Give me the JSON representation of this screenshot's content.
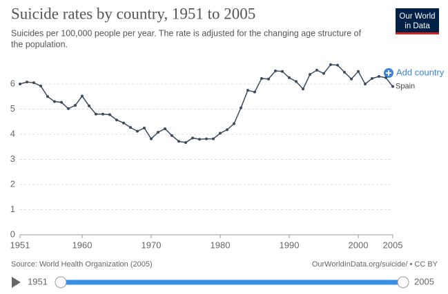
{
  "chart_data": {
    "type": "line",
    "title": "Suicide rates by country, 1951 to 2005",
    "subtitle": [
      "Suicides per 100,000 people per year. The rate is adjusted for the changing age structure of",
      "the population."
    ],
    "x": [
      1951,
      1952,
      1953,
      1954,
      1955,
      1956,
      1957,
      1958,
      1959,
      1960,
      1961,
      1962,
      1963,
      1964,
      1965,
      1966,
      1967,
      1968,
      1969,
      1970,
      1971,
      1972,
      1973,
      1974,
      1975,
      1976,
      1977,
      1978,
      1979,
      1980,
      1981,
      1982,
      1983,
      1984,
      1985,
      1986,
      1987,
      1988,
      1989,
      1990,
      1991,
      1992,
      1993,
      1994,
      1995,
      1996,
      1997,
      1998,
      1999,
      2000,
      2001,
      2002,
      2003,
      2004,
      2005
    ],
    "series": [
      {
        "name": "Spain",
        "color": "#3b4a5c",
        "values": [
          6.0,
          6.08,
          6.05,
          5.92,
          5.5,
          5.3,
          5.27,
          5.02,
          5.15,
          5.52,
          5.13,
          4.8,
          4.8,
          4.78,
          4.57,
          4.45,
          4.27,
          4.12,
          4.25,
          3.82,
          4.08,
          4.22,
          3.95,
          3.72,
          3.67,
          3.85,
          3.8,
          3.82,
          3.82,
          4.04,
          4.18,
          4.42,
          5.05,
          5.75,
          5.68,
          6.22,
          6.2,
          6.52,
          6.5,
          6.25,
          6.1,
          5.8,
          6.38,
          6.55,
          6.42,
          6.77,
          6.75,
          6.47,
          6.2,
          6.5,
          6.0,
          6.22,
          6.3,
          6.25,
          5.9
        ]
      }
    ],
    "xlim": [
      1951,
      2005
    ],
    "xticks": [
      1951,
      1960,
      1970,
      1980,
      1990,
      2000,
      2005
    ],
    "ylim": [
      0,
      7
    ],
    "yticks": [
      0,
      1,
      2,
      3,
      4,
      5,
      6
    ],
    "grid": true
  },
  "logo": [
    "Our World",
    "in Data"
  ],
  "add_country": "Add country",
  "source": "Source: World Health Organization (2005)",
  "license": "OurWorldInData.org/suicide/ • CC BY",
  "timeline": {
    "start": 1951,
    "end": 2005
  }
}
